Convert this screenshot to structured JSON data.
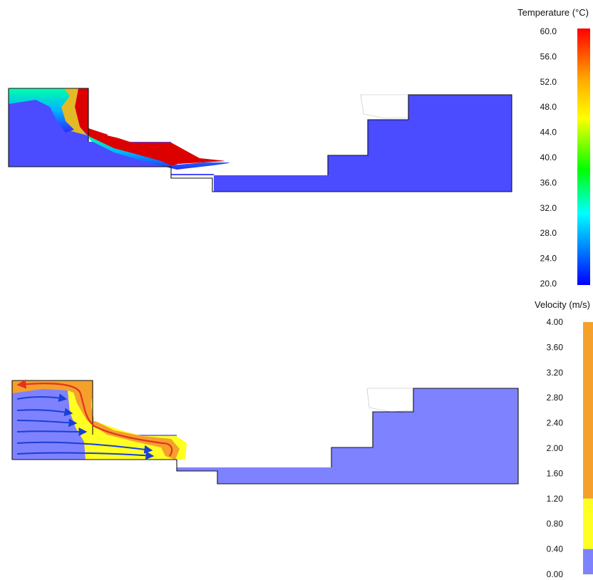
{
  "temperature_legend": {
    "title": "Temperature (°C)",
    "ticks": [
      "60.0",
      "56.0",
      "52.0",
      "48.0",
      "44.0",
      "40.0",
      "36.0",
      "32.0",
      "28.0",
      "24.0",
      "20.0"
    ],
    "gradient_colors": [
      "#ff0000",
      "#ffaa00",
      "#ffff00",
      "#00ff00",
      "#00ffff",
      "#0000ff"
    ]
  },
  "velocity_legend": {
    "title": "Velocity (m/s)",
    "ticks": [
      "4.00",
      "3.60",
      "3.20",
      "2.80",
      "2.40",
      "2.00",
      "1.60",
      "1.20",
      "0.80",
      "0.40",
      "0.00"
    ],
    "bands": [
      {
        "from": 1.2,
        "to": 4.0,
        "color": "#f5a02a"
      },
      {
        "from": 0.4,
        "to": 1.2,
        "color": "#ffff22"
      },
      {
        "from": 0.0,
        "to": 0.4,
        "color": "#7f82ff"
      }
    ]
  },
  "colors": {
    "cold": "#4b4bff",
    "hot": "#dd0000",
    "slow": "#7f82ff",
    "medium": "#ffff22",
    "fast": "#f5a02a",
    "arrow_blue": "#1a3fd6",
    "arrow_red": "#e23322",
    "outline": "#111111"
  }
}
